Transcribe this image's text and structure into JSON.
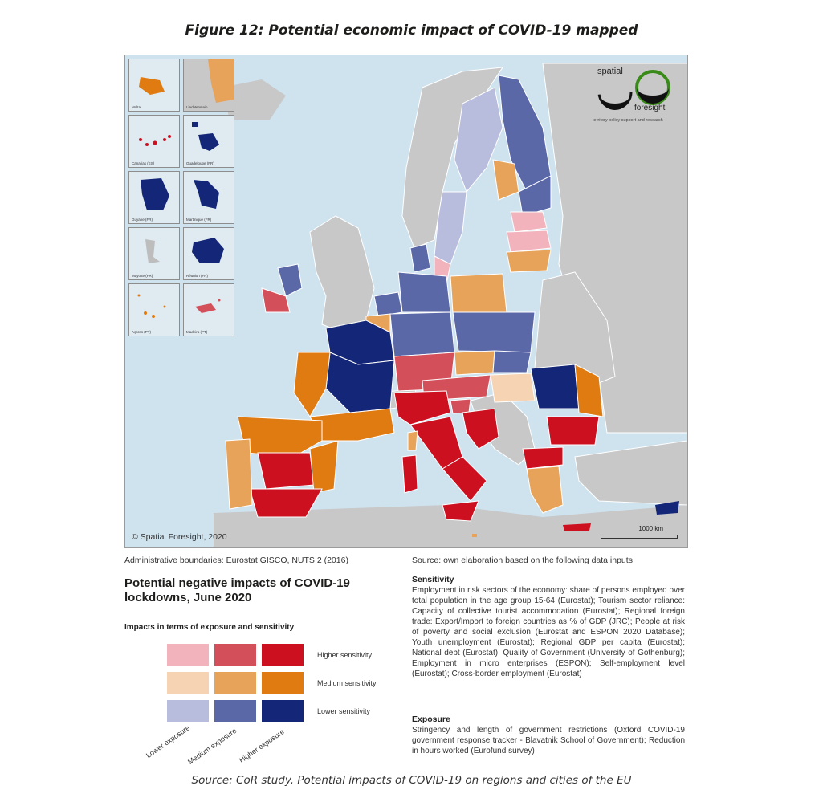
{
  "figure_title": "Figure 12: Potential economic impact of COVID-19 mapped",
  "map": {
    "copyright": "© Spatial Foresight, 2020",
    "scale_label": "1000 km",
    "logo": {
      "spatial": "spatial",
      "foresight": "foresight",
      "tagline": "territory policy support and research"
    },
    "insets": [
      {
        "label": "Malta"
      },
      {
        "label": "Liechtenstein"
      },
      {
        "label": "Canarias (ES)"
      },
      {
        "label": "Guadeloupe (FR)"
      },
      {
        "label": "Guyane (FR)"
      },
      {
        "label": "Martinique (FR)"
      },
      {
        "label": "Mayotte (FR)"
      },
      {
        "label": "Réunion (FR)"
      },
      {
        "label": "Açores (PT)"
      },
      {
        "label": "Madeira (PT)"
      }
    ]
  },
  "admin_note": "Administrative boundaries: Eurostat GISCO, NUTS 2 (2016)",
  "source_note": "Source: own elaboration based on the following data inputs",
  "legend": {
    "title": "Potential negative impacts of COVID-19 lockdowns, June 2020",
    "subtitle": "Impacts in terms of exposure and sensitivity",
    "sensitivity_labels": [
      "Higher sensitivity",
      "Medium sensitivity",
      "Lower sensitivity"
    ],
    "exposure_labels": [
      "Lower exposure",
      "Medium exposure",
      "Higher exposure"
    ],
    "colors": {
      "high_low": "#f2b3bd",
      "high_med": "#d3505a",
      "high_high": "#cc1020",
      "med_low": "#f5d3b3",
      "med_med": "#e8a35a",
      "med_high": "#e07b12",
      "low_low": "#b8bcdd",
      "low_med": "#5b68a8",
      "low_high": "#142677"
    }
  },
  "sensitivity": {
    "heading": "Sensitivity",
    "text": "Employment in risk sectors of the economy: share of persons employed over total population in the age group 15-64 (Eurostat); Tourism sector reliance: Capacity of collective tourist accommodation (Eurostat); Regional foreign trade: Export/Import to foreign countries as % of GDP (JRC); People at risk of poverty and social exclusion (Eurostat and ESPON 2020 Database); Youth unemployment (Eurostat); Regional GDP per capita (Eurostat); National debt (Eurostat); Quality of Government (University of Gothenburg); Employment in micro enterprises (ESPON); Self-employment level (Eurostat); Cross-border employment (Eurostat)"
  },
  "exposure": {
    "heading": "Exposure",
    "text": "Stringency and length of government restrictions (Oxford COVID-19 government response tracker - Blavatnik School of Government); Reduction in hours worked (Eurofund survey)"
  },
  "source_line": "Source: CoR study. Potential impacts of COVID-19 on regions and cities of the EU"
}
